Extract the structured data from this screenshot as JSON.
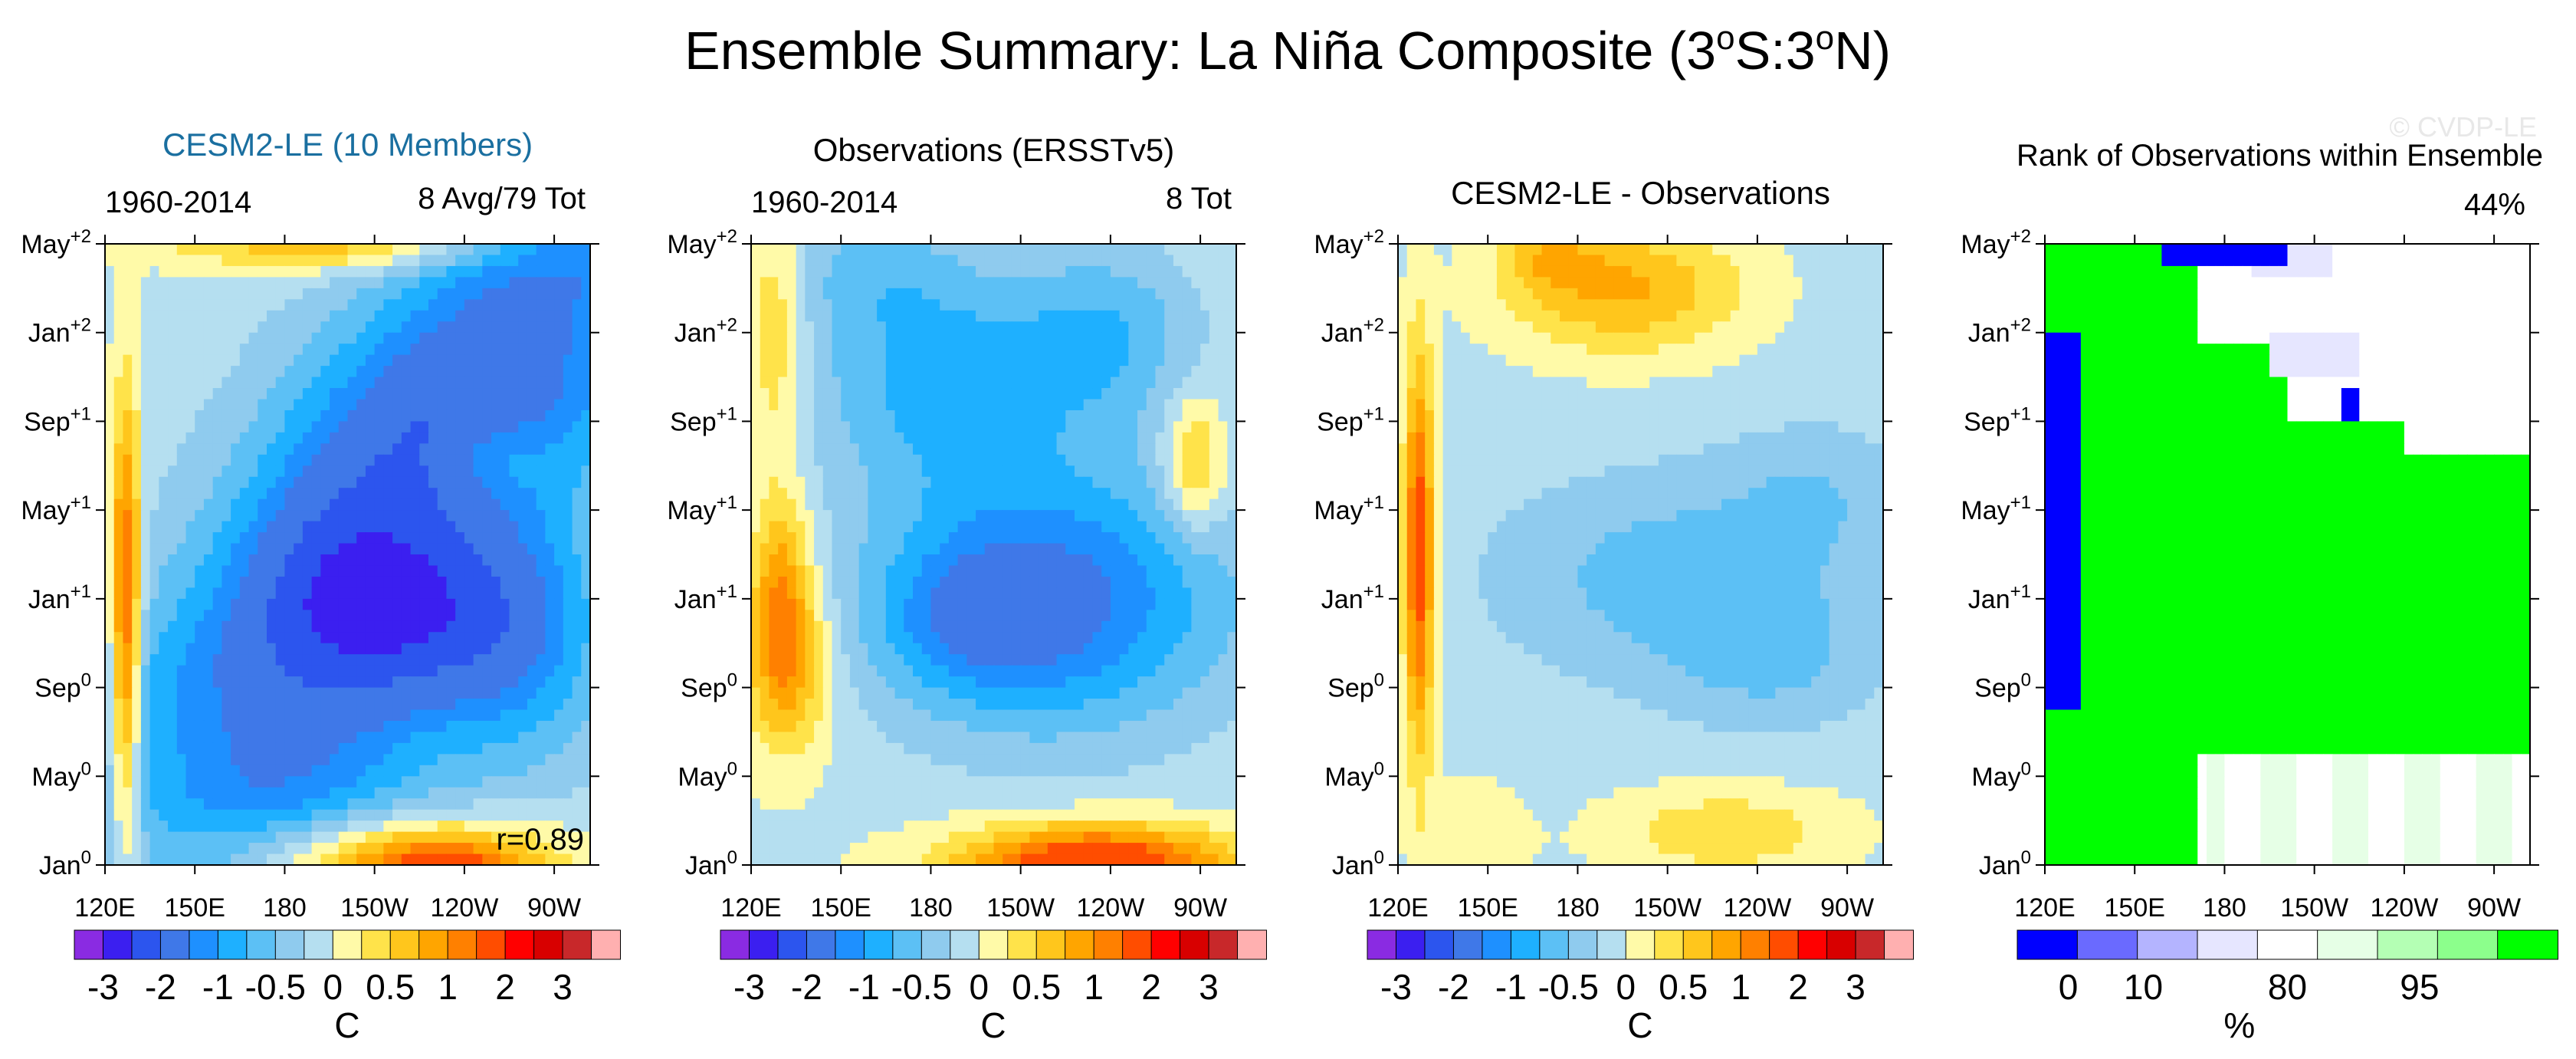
{
  "title_main": "Ensemble Summary: La Niña Composite (3",
  "title_sup1": "o",
  "title_mid": "S:3",
  "title_sup2": "o",
  "title_end": "N)",
  "watermark": "© CVDP-LE",
  "colors": {
    "temp_scale": [
      "#8a2be2",
      "#3b1ff0",
      "#2c55ee",
      "#3f78e8",
      "#1e90ff",
      "#1eb0ff",
      "#5cc0f5",
      "#8fcbee",
      "#b5dff0",
      "#fffaa8",
      "#ffe34a",
      "#ffc61c",
      "#ffa500",
      "#ff8000",
      "#ff4d00",
      "#ff0000",
      "#d80000",
      "#c8282a",
      "#ffb0b0"
    ],
    "rank_scale": [
      "#0000ff",
      "#6a6aff",
      "#b4b4ff",
      "#e6e6ff",
      "#ffffff",
      "#e6ffe6",
      "#b4ffb4",
      "#8cff8c",
      "#00ff00"
    ],
    "model_title": "#1a6fa0"
  },
  "chart_data": [
    {
      "type": "heatmap",
      "title": "CESM2-LE (10 Members)",
      "left_label": "1960-2014",
      "right_label": "8 Avg/79 Tot",
      "annotation": "r=0.89",
      "x_tick_labels": [
        "120E",
        "150E",
        "180",
        "150W",
        "120W",
        "90W"
      ],
      "x_range_deg_east": [
        120,
        282
      ],
      "y_tick_labels": [
        [
          "May",
          "+2"
        ],
        [
          "Jan",
          "+2"
        ],
        [
          "Sep",
          "+1"
        ],
        [
          "May",
          "+1"
        ],
        [
          "Jan",
          "+1"
        ],
        [
          "Sep",
          "0"
        ],
        [
          "May",
          "0"
        ],
        [
          "Jan",
          "0"
        ]
      ],
      "y_range_months": [
        0,
        28
      ],
      "colorbar_labels": [
        "-3",
        "-2",
        "-1",
        "-0.5",
        "0",
        "0.5",
        "1",
        "2",
        "3"
      ],
      "colorbar_unit": "C",
      "anomaly_peak": [
        {
          "lon": 225,
          "month": 12,
          "value": -2.1
        },
        {
          "lon": 185,
          "month": 10,
          "value": -1.5
        },
        {
          "lon": 255,
          "month": 18,
          "value": -0.3
        },
        {
          "lon": 128,
          "month": 12,
          "value": 0.8
        },
        {
          "lon": 200,
          "month": 0,
          "value": 0.9
        }
      ]
    },
    {
      "type": "heatmap",
      "title": "Observations (ERSSTv5)",
      "left_label": "1960-2014",
      "right_label": "8 Tot",
      "x_tick_labels": [
        "120E",
        "150E",
        "180",
        "150W",
        "120W",
        "90W"
      ],
      "x_range_deg_east": [
        120,
        282
      ],
      "y_tick_labels": [
        [
          "May",
          "+2"
        ],
        [
          "Jan",
          "+2"
        ],
        [
          "Sep",
          "+1"
        ],
        [
          "May",
          "+1"
        ],
        [
          "Jan",
          "+1"
        ],
        [
          "Sep",
          "0"
        ],
        [
          "May",
          "0"
        ],
        [
          "Jan",
          "0"
        ]
      ],
      "y_range_months": [
        0,
        28
      ],
      "colorbar_labels": [
        "-3",
        "-2",
        "-1",
        "-0.5",
        "0",
        "0.5",
        "1",
        "2",
        "3"
      ],
      "colorbar_unit": "C",
      "anomaly_peak": [
        {
          "lon": 215,
          "month": 12,
          "value": -1.6
        },
        {
          "lon": 130,
          "month": 8,
          "value": 0.7
        },
        {
          "lon": 270,
          "month": 20,
          "value": 0.3
        },
        {
          "lon": 235,
          "month": 0,
          "value": 0.9
        }
      ]
    },
    {
      "type": "heatmap",
      "title": "CESM2-LE - Observations",
      "left_label": "",
      "right_label": "",
      "x_tick_labels": [
        "120E",
        "150E",
        "180",
        "150W",
        "120W",
        "90W"
      ],
      "x_range_deg_east": [
        120,
        282
      ],
      "y_tick_labels": [
        [
          "May",
          "+2"
        ],
        [
          "Jan",
          "+2"
        ],
        [
          "Sep",
          "+1"
        ],
        [
          "May",
          "+1"
        ],
        [
          "Jan",
          "+1"
        ],
        [
          "Sep",
          "0"
        ],
        [
          "May",
          "0"
        ],
        [
          "Jan",
          "0"
        ]
      ],
      "y_range_months": [
        0,
        28
      ],
      "colorbar_labels": [
        "-3",
        "-2",
        "-1",
        "-0.5",
        "0",
        "0.5",
        "1",
        "2",
        "3"
      ],
      "colorbar_unit": "C",
      "anomaly_peak": [
        {
          "lon": 225,
          "month": 12,
          "value": -0.8
        },
        {
          "lon": 128,
          "month": 14,
          "value": 0.9
        },
        {
          "lon": 190,
          "month": 26,
          "value": 0.6
        },
        {
          "lon": 230,
          "month": 2,
          "value": 0.2
        }
      ]
    },
    {
      "type": "heatmap",
      "title": "Rank of Observations within Ensemble",
      "left_label": "",
      "right_label": "44%",
      "x_tick_labels": [
        "120E",
        "150E",
        "180",
        "150W",
        "120W",
        "90W"
      ],
      "x_range_deg_east": [
        120,
        282
      ],
      "y_tick_labels": [
        [
          "May",
          "+2"
        ],
        [
          "Jan",
          "+2"
        ],
        [
          "Sep",
          "+1"
        ],
        [
          "May",
          "+1"
        ],
        [
          "Jan",
          "+1"
        ],
        [
          "Sep",
          "0"
        ],
        [
          "May",
          "0"
        ],
        [
          "Jan",
          "0"
        ]
      ],
      "y_range_months": [
        0,
        28
      ],
      "colorbar_labels": [
        "0",
        "10",
        "80",
        "95"
      ],
      "colorbar_unit": "%",
      "rank_regions": [
        {
          "category": 0,
          "note": "west edge, Sep0 to Jan+2",
          "value": 0
        },
        {
          "category": 8,
          "note": "central basin, May0 to May+2",
          "value": 100
        },
        {
          "category": 4,
          "note": "east basin early and late",
          "value": 50
        }
      ]
    }
  ]
}
